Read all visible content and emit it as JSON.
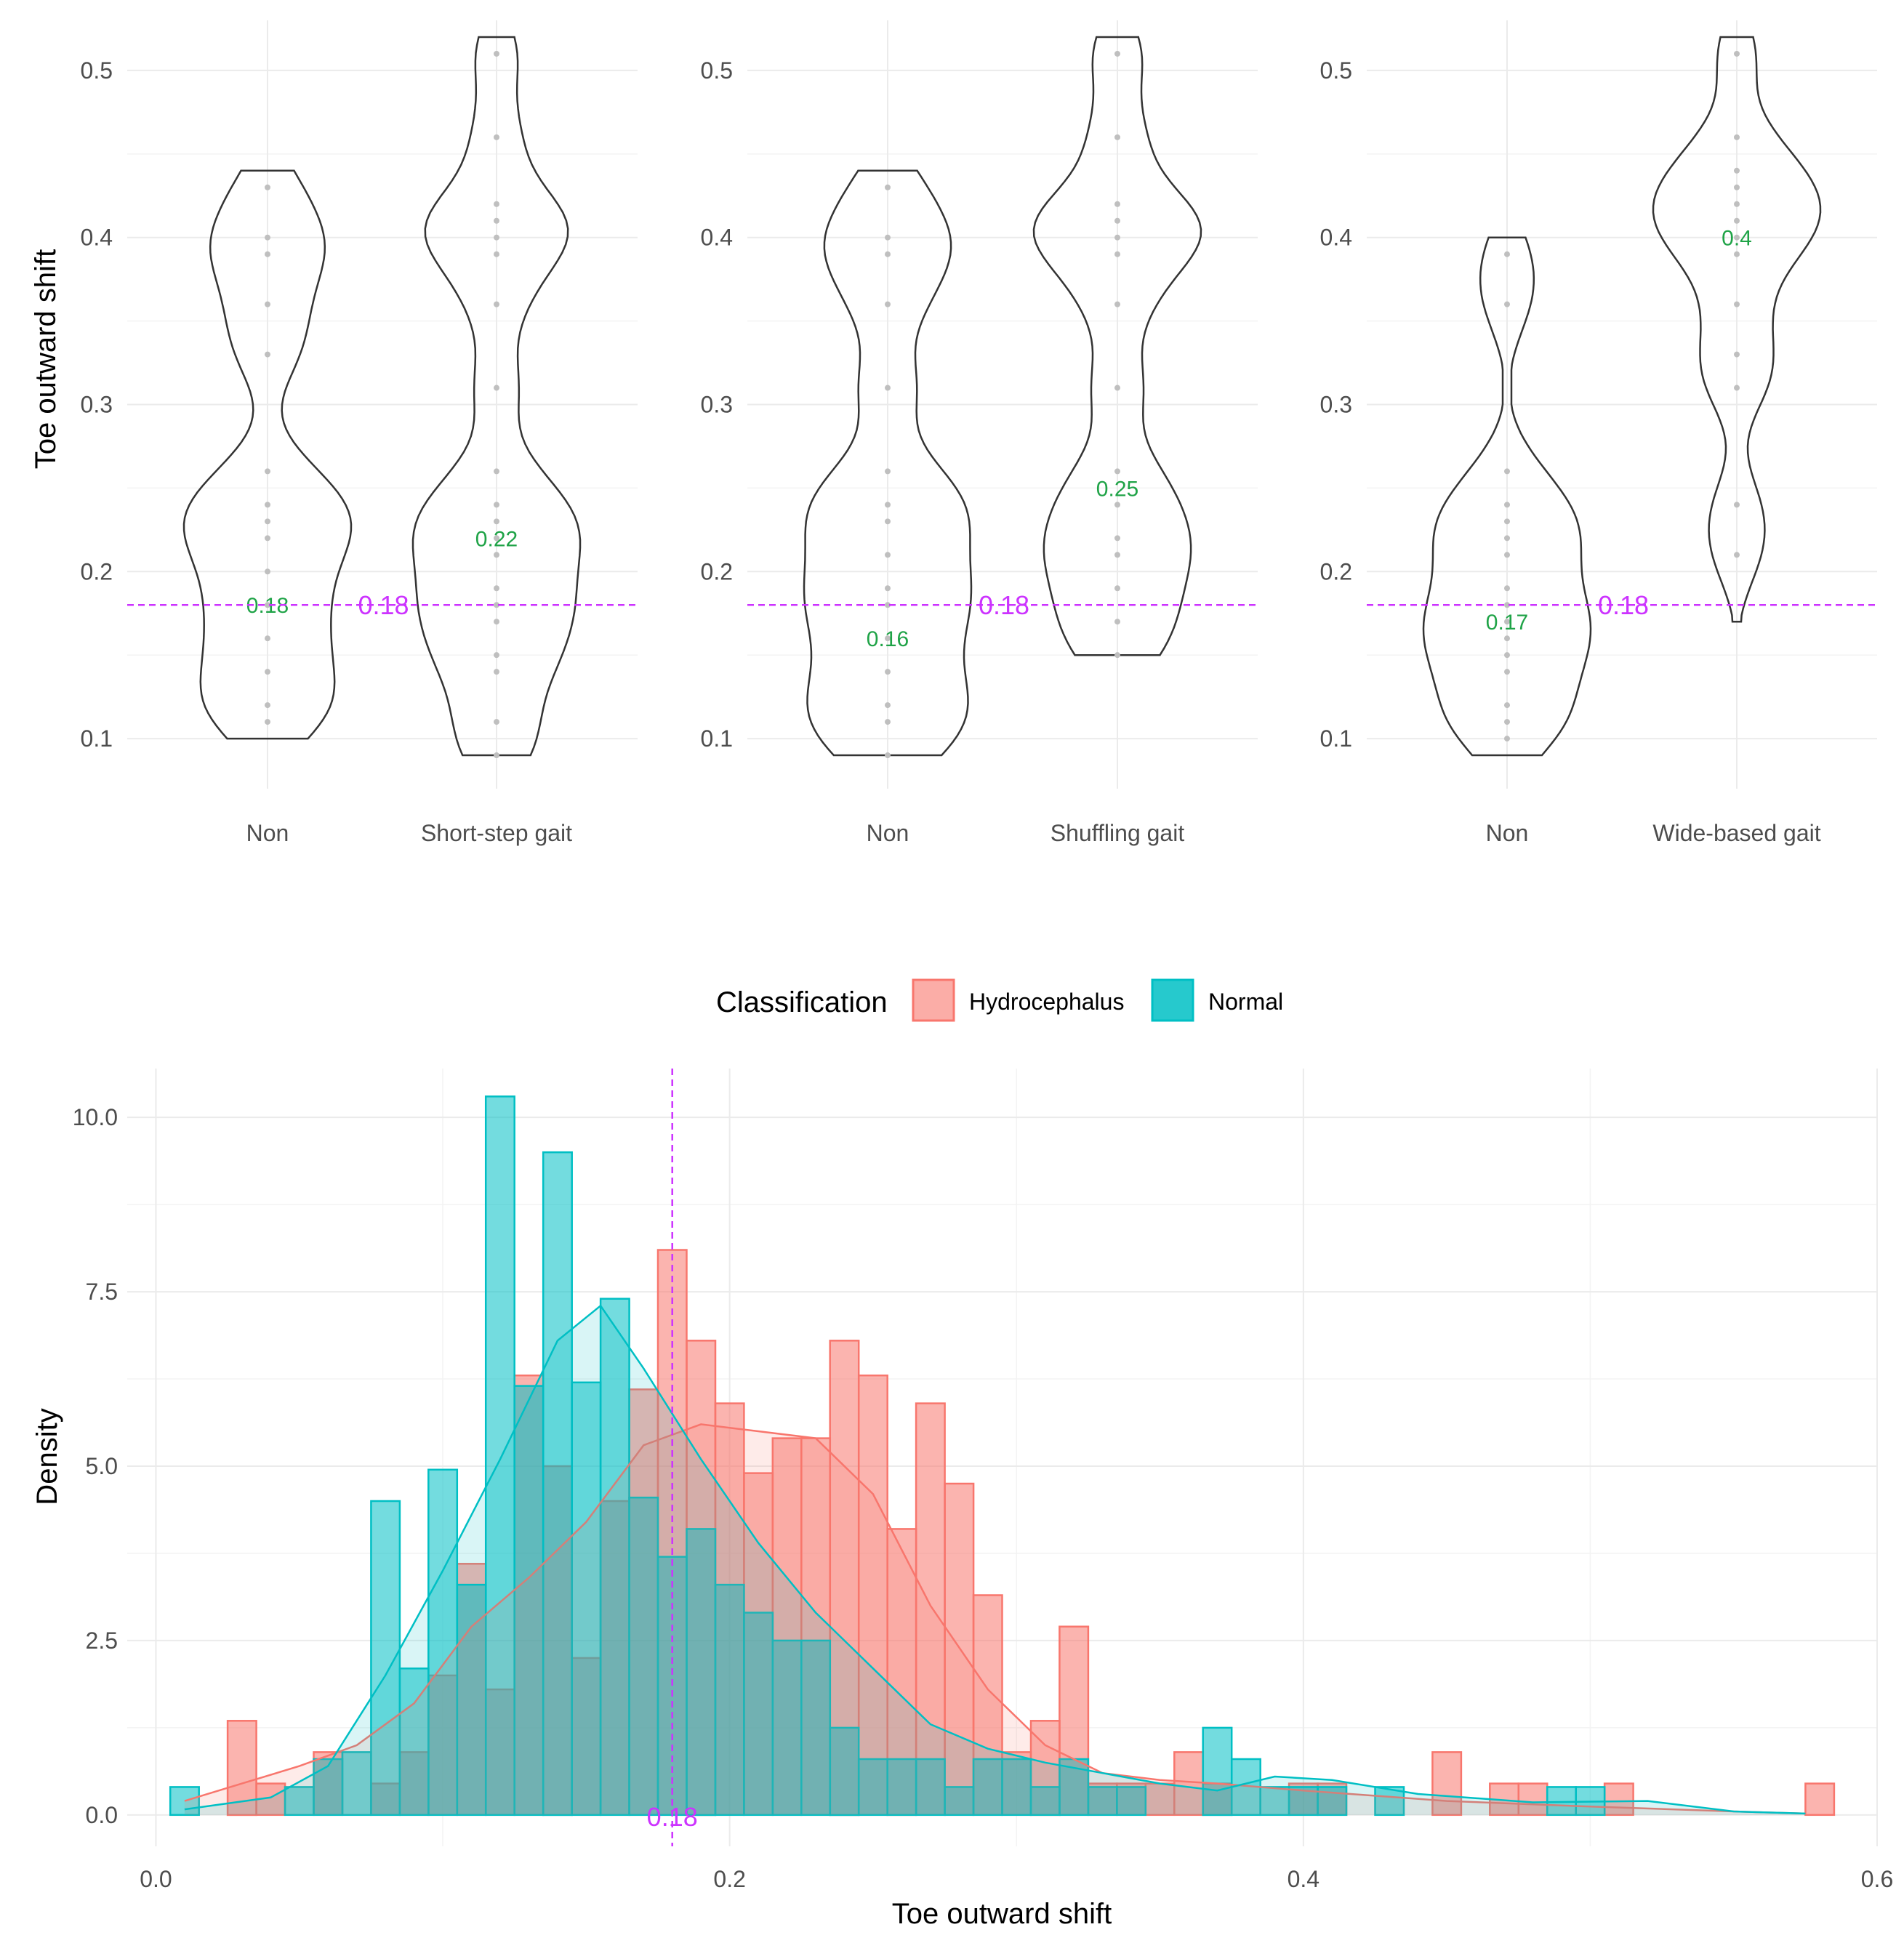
{
  "colors": {
    "hydrocephalus": "#F8766D",
    "normal": "#00BFC4",
    "threshold": "#CC33FF",
    "median_label": "#1FA347",
    "violin_outline": "#333333",
    "dots": "#BFBFBF"
  },
  "chart_data": [
    {
      "type": "violin",
      "ylabel": "Toe outward shift",
      "ylim": [
        0.07,
        0.53
      ],
      "yticks": [
        "0.1",
        "0.2",
        "0.3",
        "0.4",
        "0.5"
      ],
      "threshold": 0.18,
      "threshold_label": "0.18",
      "categories": [
        {
          "name": "Non",
          "min": 0.1,
          "max": 0.44,
          "median": 0.18,
          "median_label": "0.18",
          "points": [
            0.11,
            0.12,
            0.14,
            0.16,
            0.18,
            0.2,
            0.22,
            0.23,
            0.24,
            0.26,
            0.33,
            0.36,
            0.39,
            0.4,
            0.43
          ]
        },
        {
          "name": "Short-step gait",
          "min": 0.09,
          "max": 0.52,
          "median": 0.22,
          "median_label": "0.22",
          "points": [
            0.09,
            0.11,
            0.14,
            0.15,
            0.17,
            0.18,
            0.19,
            0.21,
            0.22,
            0.23,
            0.24,
            0.26,
            0.31,
            0.36,
            0.39,
            0.4,
            0.41,
            0.42,
            0.46,
            0.51
          ]
        }
      ]
    },
    {
      "type": "violin",
      "ylabel": "",
      "ylim": [
        0.07,
        0.53
      ],
      "yticks": [
        "0.1",
        "0.2",
        "0.3",
        "0.4",
        "0.5"
      ],
      "threshold": 0.18,
      "threshold_label": "0.18",
      "categories": [
        {
          "name": "Non",
          "min": 0.09,
          "max": 0.44,
          "median": 0.16,
          "median_label": "0.16",
          "points": [
            0.09,
            0.11,
            0.12,
            0.14,
            0.16,
            0.18,
            0.19,
            0.21,
            0.23,
            0.24,
            0.26,
            0.31,
            0.36,
            0.39,
            0.4,
            0.43
          ]
        },
        {
          "name": "Shuffling gait",
          "min": 0.15,
          "max": 0.52,
          "median": 0.25,
          "median_label": "0.25",
          "points": [
            0.15,
            0.17,
            0.19,
            0.21,
            0.22,
            0.24,
            0.26,
            0.31,
            0.36,
            0.39,
            0.4,
            0.41,
            0.42,
            0.46,
            0.51
          ]
        }
      ]
    },
    {
      "type": "violin",
      "ylabel": "",
      "ylim": [
        0.07,
        0.53
      ],
      "yticks": [
        "0.1",
        "0.2",
        "0.3",
        "0.4",
        "0.5"
      ],
      "threshold": 0.18,
      "threshold_label": "0.18",
      "categories": [
        {
          "name": "Non",
          "min": 0.09,
          "max": 0.4,
          "median": 0.17,
          "median_label": "0.17",
          "points": [
            0.1,
            0.11,
            0.12,
            0.14,
            0.15,
            0.16,
            0.17,
            0.18,
            0.19,
            0.21,
            0.22,
            0.23,
            0.24,
            0.26,
            0.36,
            0.39
          ]
        },
        {
          "name": "Wide-based gait",
          "min": 0.17,
          "max": 0.52,
          "median": 0.4,
          "median_label": "0.4",
          "points": [
            0.21,
            0.24,
            0.31,
            0.33,
            0.36,
            0.39,
            0.4,
            0.41,
            0.42,
            0.43,
            0.44,
            0.46,
            0.51
          ]
        }
      ]
    },
    {
      "type": "histogram",
      "xlabel": "Toe outward shift",
      "ylabel": "Density",
      "xlim": [
        -0.01,
        0.6
      ],
      "ylim": [
        -0.45,
        10.7
      ],
      "xticks": [
        "0.0",
        "0.2",
        "0.4",
        "0.6"
      ],
      "yticks": [
        "0.0",
        "2.5",
        "5.0",
        "7.5",
        "10.0"
      ],
      "bin_width": 0.01,
      "threshold": 0.18,
      "threshold_label": "0.18",
      "legend": {
        "title": "Classification",
        "position": "top",
        "labels": [
          "Hydrocephalus",
          "Normal"
        ]
      },
      "series": [
        {
          "name": "Hydrocephalus",
          "bin_start": 0.015,
          "values": [
            0,
            1.35,
            0.45,
            0,
            0.9,
            0,
            0.45,
            0.9,
            2.0,
            3.6,
            1.8,
            6.3,
            5.0,
            2.25,
            4.5,
            6.1,
            8.1,
            6.8,
            5.9,
            4.9,
            5.4,
            5.4,
            6.8,
            6.3,
            4.1,
            5.9,
            4.75,
            3.15,
            0.9,
            1.35,
            2.7,
            0.45,
            0.45,
            0.45,
            0.9,
            0.45,
            0,
            0,
            0.45,
            0.45,
            0,
            0,
            0,
            0.9,
            0,
            0.45,
            0.45,
            0,
            0,
            0.45,
            0,
            0,
            0,
            0,
            0,
            0,
            0.45
          ],
          "density": [
            [
              0.01,
              0.2
            ],
            [
              0.03,
              0.45
            ],
            [
              0.05,
              0.7
            ],
            [
              0.07,
              1.0
            ],
            [
              0.09,
              1.6
            ],
            [
              0.11,
              2.7
            ],
            [
              0.13,
              3.4
            ],
            [
              0.15,
              4.2
            ],
            [
              0.17,
              5.3
            ],
            [
              0.19,
              5.6
            ],
            [
              0.21,
              5.5
            ],
            [
              0.23,
              5.4
            ],
            [
              0.25,
              4.6
            ],
            [
              0.27,
              3.0
            ],
            [
              0.29,
              1.8
            ],
            [
              0.31,
              1.0
            ],
            [
              0.33,
              0.6
            ],
            [
              0.35,
              0.5
            ],
            [
              0.37,
              0.45
            ],
            [
              0.4,
              0.35
            ],
            [
              0.45,
              0.2
            ],
            [
              0.5,
              0.12
            ],
            [
              0.55,
              0.05
            ],
            [
              0.575,
              0.02
            ]
          ]
        },
        {
          "name": "Normal",
          "bin_start": 0.005,
          "values": [
            0.4,
            0,
            0,
            0,
            0.4,
            0.8,
            0.9,
            4.5,
            2.1,
            4.95,
            3.3,
            10.3,
            6.15,
            9.5,
            6.2,
            7.4,
            4.55,
            3.7,
            4.1,
            3.3,
            2.9,
            2.5,
            2.5,
            1.25,
            0.8,
            0.8,
            0.8,
            0.4,
            0.8,
            0.8,
            0.4,
            0.8,
            0.4,
            0.4,
            0,
            0,
            1.25,
            0.8,
            0.4,
            0.4,
            0.4,
            0,
            0.4,
            0,
            0,
            0,
            0,
            0,
            0.4,
            0.4,
            0,
            0,
            0,
            0,
            0,
            0,
            0
          ],
          "density": [
            [
              0.01,
              0.08
            ],
            [
              0.04,
              0.25
            ],
            [
              0.06,
              0.7
            ],
            [
              0.08,
              2.0
            ],
            [
              0.1,
              3.5
            ],
            [
              0.12,
              5.1
            ],
            [
              0.14,
              6.8
            ],
            [
              0.155,
              7.3
            ],
            [
              0.17,
              6.4
            ],
            [
              0.19,
              5.1
            ],
            [
              0.21,
              3.9
            ],
            [
              0.23,
              2.9
            ],
            [
              0.25,
              2.1
            ],
            [
              0.27,
              1.3
            ],
            [
              0.29,
              0.95
            ],
            [
              0.31,
              0.75
            ],
            [
              0.33,
              0.6
            ],
            [
              0.35,
              0.45
            ],
            [
              0.37,
              0.35
            ],
            [
              0.39,
              0.55
            ],
            [
              0.41,
              0.5
            ],
            [
              0.44,
              0.3
            ],
            [
              0.48,
              0.18
            ],
            [
              0.52,
              0.2
            ],
            [
              0.55,
              0.05
            ],
            [
              0.575,
              0.02
            ]
          ]
        }
      ]
    }
  ]
}
